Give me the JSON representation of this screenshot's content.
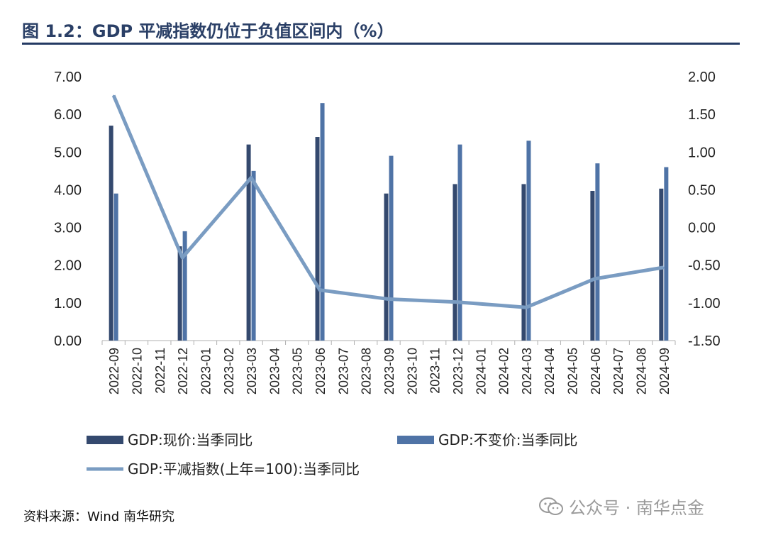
{
  "header": {
    "title": "图 1.2：GDP 平减指数仍位于负值区间内（%）"
  },
  "footer": {
    "source": "资料来源：Wind  南华研究",
    "watermark": "公众号 · 南华点金"
  },
  "colors": {
    "title": "#2a3f66",
    "nominal": "#34496e",
    "real": "#4f73a6",
    "deflator": "#7a9cc2",
    "axis": "#b0b0b0"
  },
  "chart_data": {
    "type": "bar",
    "categories": [
      "2022-09",
      "2022-10",
      "2022-11",
      "2022-12",
      "2023-01",
      "2023-02",
      "2023-03",
      "2023-04",
      "2023-05",
      "2023-06",
      "2023-07",
      "2023-08",
      "2023-09",
      "2023-10",
      "2023-11",
      "2023-12",
      "2024-01",
      "2024-02",
      "2024-03",
      "2024-04",
      "2024-05",
      "2024-06",
      "2024-07",
      "2024-08",
      "2024-09"
    ],
    "left_axis": {
      "min": 0,
      "max": 7,
      "step": 1,
      "tick_labels": [
        "0.00",
        "1.00",
        "2.00",
        "3.00",
        "4.00",
        "5.00",
        "6.00",
        "7.00"
      ]
    },
    "right_axis": {
      "min": -1.5,
      "max": 2,
      "step": 0.5,
      "tick_labels": [
        "-1.50",
        "-1.00",
        "-0.50",
        "0.00",
        "0.50",
        "1.00",
        "1.50",
        "2.00"
      ]
    },
    "series": [
      {
        "name": "GDP:现价:当季同比",
        "type": "bar",
        "axis": "left",
        "values": [
          5.7,
          null,
          null,
          2.5,
          null,
          null,
          5.2,
          null,
          null,
          5.4,
          null,
          null,
          3.9,
          null,
          null,
          4.15,
          null,
          null,
          4.15,
          null,
          null,
          3.97,
          null,
          null,
          4.03
        ]
      },
      {
        "name": "GDP:不变价:当季同比",
        "type": "bar",
        "axis": "left",
        "values": [
          3.9,
          null,
          null,
          2.9,
          null,
          null,
          4.5,
          null,
          null,
          6.3,
          null,
          null,
          4.9,
          null,
          null,
          5.2,
          null,
          null,
          5.3,
          null,
          null,
          4.7,
          null,
          null,
          4.6
        ]
      },
      {
        "name": "GDP:平减指数(上年=100):当季同比",
        "type": "line",
        "axis": "right",
        "values": [
          1.75,
          null,
          null,
          -0.4,
          null,
          null,
          0.66,
          null,
          null,
          -0.83,
          null,
          null,
          -0.95,
          null,
          null,
          -0.99,
          null,
          null,
          -1.06,
          null,
          null,
          -0.68,
          null,
          null,
          -0.53
        ]
      }
    ],
    "legend_position": "bottom",
    "grid": false
  }
}
